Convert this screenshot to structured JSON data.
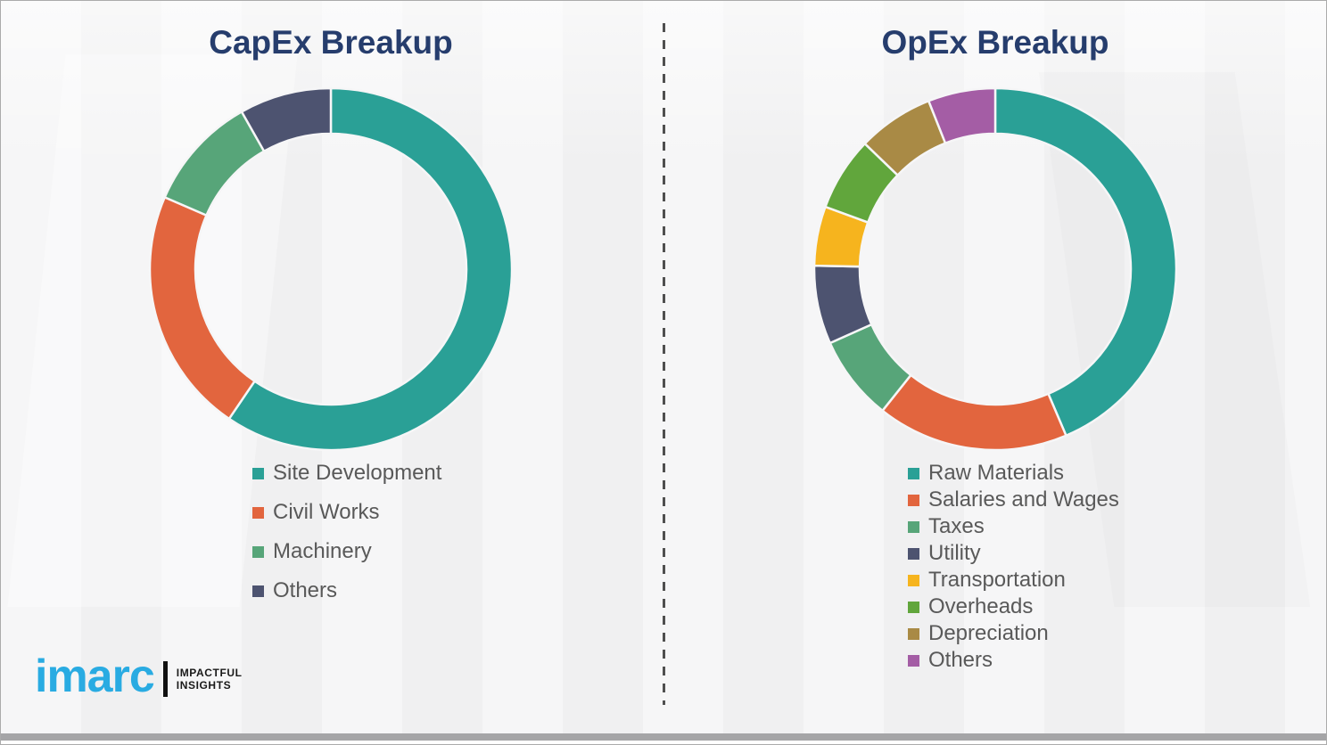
{
  "page": {
    "kind": "infographic with two donut charts",
    "divider_style": "vertical dashed line between charts",
    "background_color": "#f3f3f4"
  },
  "chart_data": [
    {
      "type": "pie",
      "variant": "donut",
      "title": "CapEx Breakup",
      "categories": [
        "Site Development",
        "Civil Works",
        "Machinery",
        "Others"
      ],
      "values": [
        59.5,
        22.0,
        10.3,
        8.2
      ],
      "values_are_percent_estimates": true,
      "colors": [
        "#2aa096",
        "#e2653e",
        "#57a579",
        "#4d5370"
      ],
      "start_angle_deg": 0,
      "direction": "clockwise",
      "legend_position": "below",
      "data_labels": "none"
    },
    {
      "type": "pie",
      "variant": "donut",
      "title": "OpEx Breakup",
      "categories": [
        "Raw Materials",
        "Salaries and Wages",
        "Taxes",
        "Utility",
        "Transportation",
        "Overheads",
        "Depreciation",
        "Others"
      ],
      "values": [
        43.6,
        17.1,
        7.6,
        7.0,
        5.3,
        6.6,
        6.8,
        6.0
      ],
      "values_are_percent_estimates": true,
      "colors": [
        "#2aa096",
        "#e2653e",
        "#57a579",
        "#4d5370",
        "#f6b41e",
        "#61a63c",
        "#a98a45",
        "#a45da5"
      ],
      "start_angle_deg": 0,
      "direction": "clockwise",
      "legend_position": "below",
      "data_labels": "none"
    }
  ],
  "styles": {
    "title_color": "#263d6d",
    "legend_text_color": "#595959",
    "segment_gap_color": "#f6f6f7",
    "divider_dash_color": "#4f4f4f"
  },
  "logo": {
    "brand": "imarc",
    "brand_color": "#29abe2",
    "tagline_line1": "IMPACTFUL",
    "tagline_line2": "INSIGHTS"
  }
}
